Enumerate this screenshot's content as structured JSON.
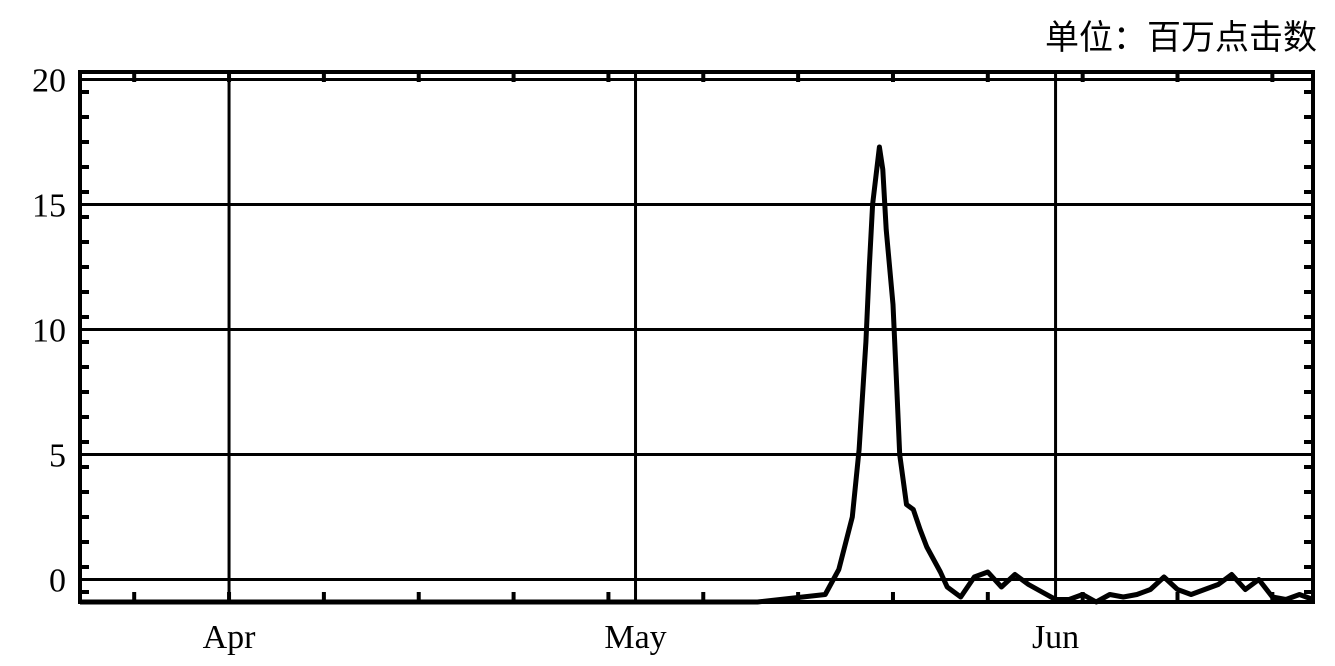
{
  "unit_label": "单位：百万点击数",
  "chart_data": {
    "type": "line",
    "title": "",
    "xlabel": "",
    "ylabel": "",
    "y_ticks": [
      0,
      5,
      10,
      15,
      20
    ],
    "y_tick_labels": [
      "0",
      "5",
      "10",
      "15",
      "20"
    ],
    "ylim": [
      -0.9,
      20.3
    ],
    "x_ticks": [
      "04-01",
      "05-01",
      "06-01"
    ],
    "x_tick_labels": [
      "Apr",
      "May",
      "Jun"
    ],
    "xlim": [
      "03-21",
      "06-20"
    ],
    "grid": true,
    "series": [
      {
        "line_color": "#000000",
        "x": [
          "03-21",
          "05-10",
          "05-15",
          "05-16",
          "05-17",
          "05-17T12",
          "05-18",
          "05-18T06",
          "05-18T12",
          "05-19",
          "05-19T06",
          "05-19T12",
          "05-20",
          "05-20T06",
          "05-20T12",
          "05-21",
          "05-21T12",
          "05-22",
          "05-22T12",
          "05-23",
          "05-23T12",
          "05-24",
          "05-25",
          "05-26",
          "05-27",
          "05-28",
          "05-29",
          "05-30",
          "05-31",
          "06-01",
          "06-02",
          "06-03",
          "06-04",
          "06-05",
          "06-06",
          "06-07",
          "06-08",
          "06-09",
          "06-10",
          "06-11",
          "06-12",
          "06-13",
          "06-14",
          "06-15",
          "06-16",
          "06-17",
          "06-18",
          "06-19",
          "06-20"
        ],
        "y": [
          -0.9,
          -0.9,
          -0.6,
          0.4,
          2.5,
          5.2,
          9.5,
          12.5,
          15.0,
          17.3,
          16.4,
          14.0,
          11.0,
          8.0,
          5.0,
          3.0,
          2.8,
          2.0,
          1.3,
          0.8,
          0.3,
          -0.3,
          -0.7,
          0.1,
          0.3,
          -0.3,
          0.2,
          -0.2,
          -0.5,
          -0.8,
          -0.8,
          -0.6,
          -0.9,
          -0.6,
          -0.7,
          -0.6,
          -0.4,
          0.1,
          -0.4,
          -0.6,
          -0.4,
          -0.2,
          0.2,
          -0.4,
          0.0,
          -0.7,
          -0.8,
          -0.6,
          -0.8
        ]
      }
    ]
  }
}
